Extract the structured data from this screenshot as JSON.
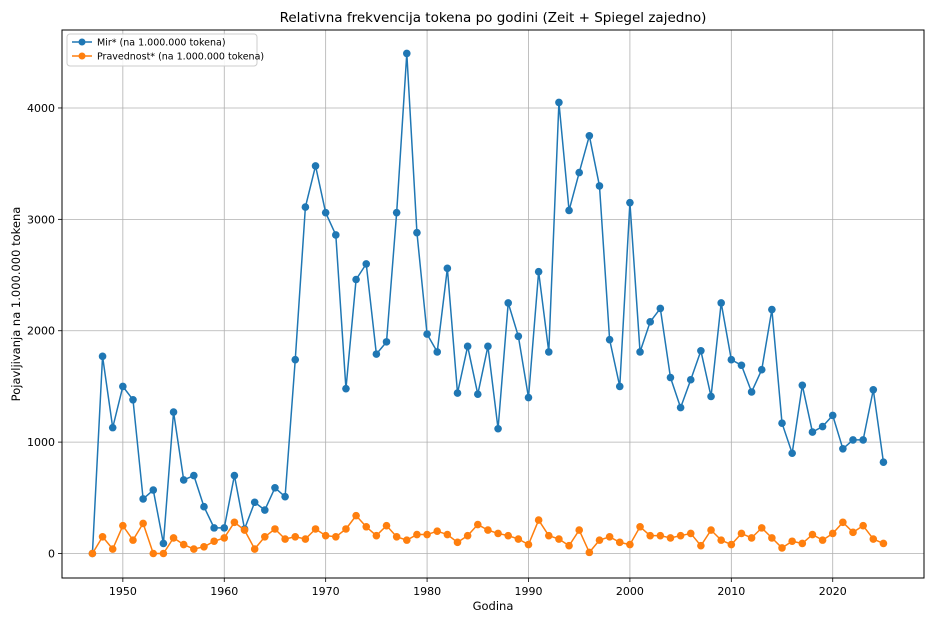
{
  "chart_data": {
    "type": "line",
    "title": "Relativna frekvencija tokena po godini (Zeit + Spiegel zajedno)",
    "xlabel": "Godina",
    "ylabel": "Pojavljivanja na 1.000.000 tokena",
    "xlim": [
      1944,
      2029
    ],
    "ylim": [
      -220,
      4700
    ],
    "xticks": [
      1950,
      1960,
      1970,
      1980,
      1990,
      2000,
      2010,
      2020
    ],
    "yticks": [
      0,
      1000,
      2000,
      3000,
      4000
    ],
    "grid": true,
    "legend_position": "top-left",
    "x": [
      1947,
      1948,
      1949,
      1950,
      1951,
      1952,
      1953,
      1954,
      1955,
      1956,
      1957,
      1958,
      1959,
      1960,
      1961,
      1962,
      1963,
      1964,
      1965,
      1966,
      1967,
      1968,
      1969,
      1970,
      1971,
      1972,
      1973,
      1974,
      1975,
      1976,
      1977,
      1978,
      1979,
      1980,
      1981,
      1982,
      1983,
      1984,
      1985,
      1986,
      1987,
      1988,
      1989,
      1990,
      1991,
      1992,
      1993,
      1994,
      1995,
      1996,
      1997,
      1998,
      1999,
      2000,
      2001,
      2002,
      2003,
      2004,
      2005,
      2006,
      2007,
      2008,
      2009,
      2010,
      2011,
      2012,
      2013,
      2014,
      2015,
      2016,
      2017,
      2018,
      2019,
      2020,
      2021,
      2022,
      2023,
      2024,
      2025
    ],
    "series": [
      {
        "name": "Mir* (na 1.000.000 tokena)",
        "color": "#1f77b4",
        "values": [
          0,
          1770,
          1130,
          1500,
          1380,
          490,
          570,
          90,
          1270,
          660,
          700,
          420,
          230,
          230,
          700,
          220,
          460,
          390,
          590,
          510,
          1740,
          3110,
          3480,
          3060,
          2860,
          1480,
          2460,
          2600,
          1790,
          1900,
          3060,
          4490,
          2880,
          1970,
          1810,
          2560,
          1440,
          1860,
          1430,
          1860,
          1120,
          2250,
          1950,
          1400,
          2530,
          1810,
          4050,
          3080,
          3420,
          3750,
          3300,
          1920,
          1500,
          3150,
          1810,
          2080,
          2200,
          1580,
          1310,
          1560,
          1820,
          1410,
          2250,
          1740,
          1690,
          1450,
          1650,
          2190,
          1170,
          900,
          1510,
          1090,
          1140,
          1240,
          940,
          1020,
          1020,
          1470,
          820
        ]
      },
      {
        "name": "Pravednost* (na 1.000.000 tokena)",
        "color": "#ff7f0e",
        "values": [
          0,
          150,
          40,
          250,
          120,
          270,
          0,
          0,
          140,
          80,
          40,
          60,
          110,
          140,
          280,
          210,
          40,
          150,
          220,
          130,
          150,
          130,
          220,
          160,
          150,
          220,
          340,
          240,
          160,
          250,
          150,
          120,
          170,
          170,
          200,
          170,
          100,
          160,
          260,
          210,
          180,
          160,
          130,
          80,
          300,
          160,
          130,
          70,
          210,
          10,
          120,
          150,
          100,
          80,
          240,
          160,
          160,
          140,
          160,
          180,
          70,
          210,
          120,
          80,
          180,
          140,
          230,
          140,
          50,
          110,
          90,
          170,
          120,
          180,
          280,
          190,
          250,
          130,
          90
        ]
      }
    ]
  }
}
